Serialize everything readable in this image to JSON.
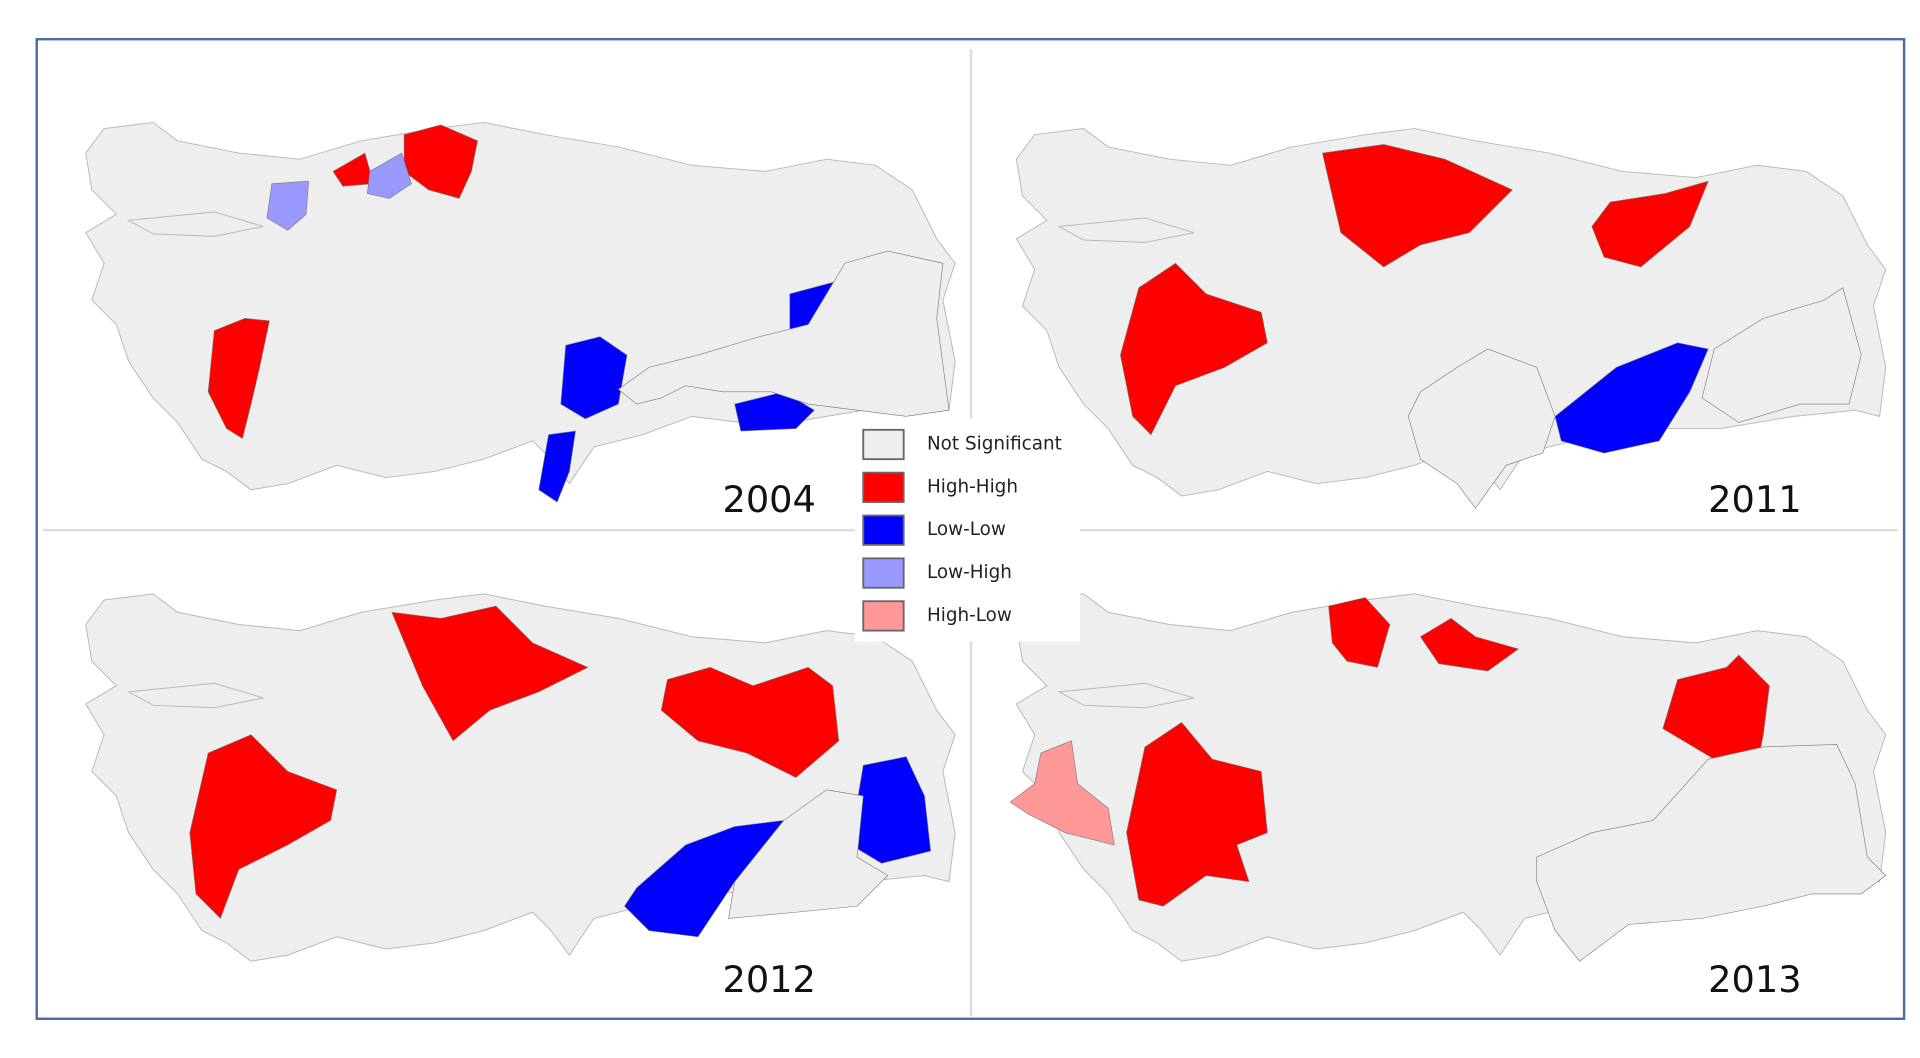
{
  "maps": [
    {
      "year": "2004"
    },
    {
      "year": "2011"
    },
    {
      "year": "2012"
    },
    {
      "year": "2013"
    }
  ],
  "legend": {
    "items": [
      {
        "label": "Not Significant",
        "color": "#eeeeee"
      },
      {
        "label": "High-High",
        "color": "#ff0000"
      },
      {
        "label": "Low-Low",
        "color": "#0000ff"
      },
      {
        "label": "Low-High",
        "color": "#9999ff"
      },
      {
        "label": "High-Low",
        "color": "#ff9999"
      }
    ]
  }
}
